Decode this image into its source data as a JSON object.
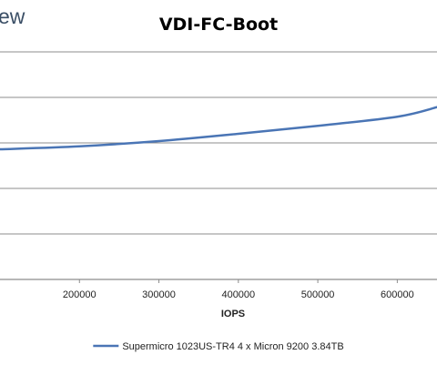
{
  "brand_fragment": "ew",
  "chart_data": {
    "type": "line",
    "title": "VDI-FC-Boot",
    "xlabel": "IOPS",
    "ylabel": "",
    "xlim": [
      100000,
      650000
    ],
    "x_ticks": [
      200000,
      300000,
      400000,
      500000,
      600000
    ],
    "x_tick_labels": [
      "200000",
      "300000",
      "400000",
      "500000",
      "600000"
    ],
    "y_gridline_count": 6,
    "grid": true,
    "legend_position": "bottom",
    "series": [
      {
        "name": "Supermicro 1023US-TR4 4 x Micron 9200 3.84TB",
        "color": "#4a75b5",
        "x": [
          100000,
          200000,
          300000,
          400000,
          500000,
          600000,
          650000
        ],
        "y": [
          0.428,
          0.415,
          0.392,
          0.36,
          0.325,
          0.285,
          0.243
        ]
      }
    ]
  }
}
